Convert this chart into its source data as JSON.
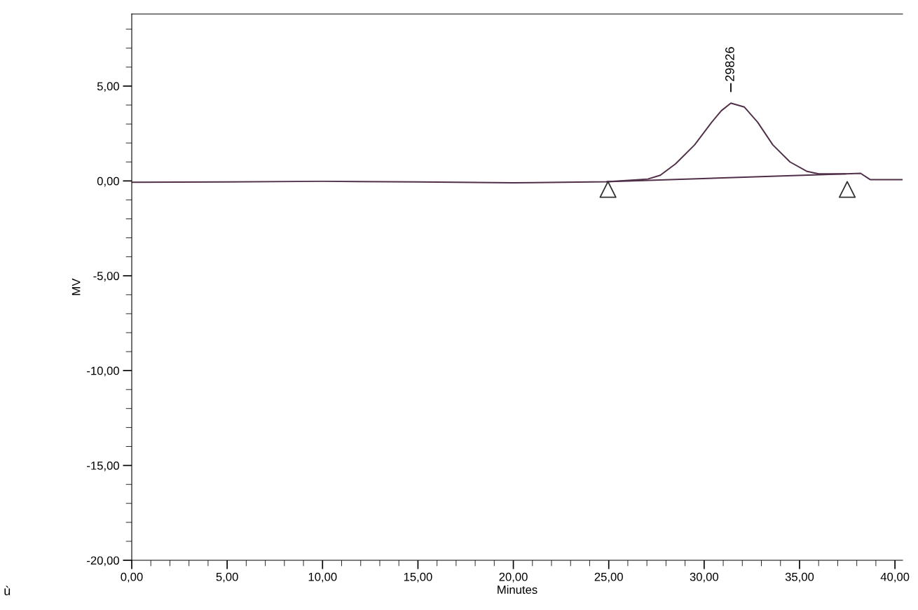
{
  "chart_data": {
    "type": "line",
    "xlabel": "Minutes",
    "ylabel": "MV",
    "xlim": [
      0,
      40.4
    ],
    "ylim": [
      -20,
      8.8
    ],
    "xticks": [
      {
        "value": 0,
        "label": "0,00"
      },
      {
        "value": 5,
        "label": "5,00"
      },
      {
        "value": 10,
        "label": "10,00"
      },
      {
        "value": 15,
        "label": "15,00"
      },
      {
        "value": 20,
        "label": "20,00"
      },
      {
        "value": 25,
        "label": "25,00"
      },
      {
        "value": 30,
        "label": "30,00"
      },
      {
        "value": 35,
        "label": "35,00"
      },
      {
        "value": 40,
        "label": "40,00"
      }
    ],
    "yticks": [
      {
        "value": -20,
        "label": "-20,00"
      },
      {
        "value": -15,
        "label": "-15,00"
      },
      {
        "value": -10,
        "label": "-10,00"
      },
      {
        "value": -5,
        "label": "-5,00"
      },
      {
        "value": 0,
        "label": "0,00"
      },
      {
        "value": 5,
        "label": "5,00"
      }
    ],
    "grid": false,
    "legend": false,
    "series": [
      {
        "color": "#503048",
        "x": [
          0,
          5,
          10,
          15,
          20,
          24.9,
          27.05,
          27.7,
          28.5,
          29.5,
          30.4,
          30.9,
          31.4,
          32.1,
          32.8,
          33.6,
          34.5,
          35.4,
          36.0,
          37.4,
          38.2,
          38.7,
          40.4
        ],
        "values": [
          -0.07,
          -0.05,
          -0.02,
          -0.05,
          -0.1,
          -0.04,
          0.1,
          0.3,
          0.9,
          1.9,
          3.1,
          3.7,
          4.1,
          3.9,
          3.1,
          1.9,
          1.0,
          0.5,
          0.37,
          0.37,
          0.4,
          0.07,
          0.07
        ]
      },
      {
        "color": "#503048",
        "x": [
          24.9,
          37.4
        ],
        "values": [
          -0.04,
          0.37
        ]
      },
      {
        "type": "scatter",
        "marker": "triangle",
        "color": "#303030",
        "x": [
          24.96,
          37.5
        ],
        "values": [
          -0.45,
          -0.45
        ]
      }
    ],
    "annotations": [
      {
        "text": "29826",
        "x": 31.4,
        "y": 4.1
      },
      "ù"
    ]
  }
}
